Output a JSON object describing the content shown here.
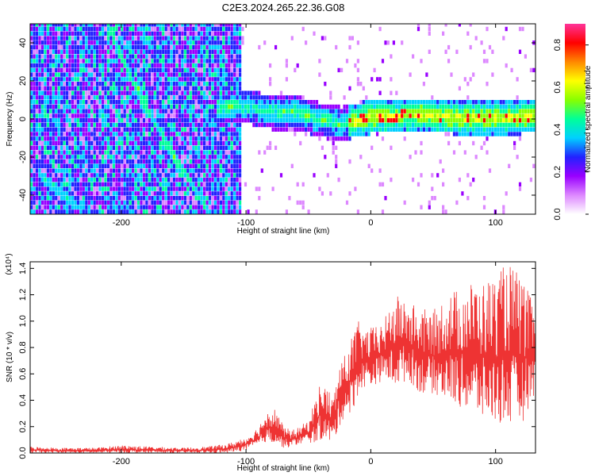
{
  "title": "C2E3.2024.265.22.36.G08",
  "chart_data": [
    {
      "type": "heatmap",
      "xlabel": "Height of straight line (km)",
      "ylabel": "Frequency (Hz)",
      "xlim": [
        -273,
        132
      ],
      "ylim": [
        -50,
        50
      ],
      "x_ticks": [
        -200,
        -100,
        0,
        100
      ],
      "x_tick_labels": [
        "-200",
        "-100",
        "0",
        "100"
      ],
      "y_ticks": [
        -40,
        -20,
        0,
        20,
        40
      ],
      "y_tick_labels": [
        "-40",
        "-20",
        "0",
        "20",
        "40"
      ],
      "colorbar": {
        "label": "Normalized spectral amplitude",
        "range": [
          0,
          0.9
        ],
        "ticks": [
          0.0,
          0.2,
          0.4,
          0.6,
          0.8
        ],
        "tick_labels": [
          "0.0",
          "0.2",
          "0.4",
          "0.6",
          "0.8"
        ],
        "colormap": [
          "#ffffff",
          "#dd88ff",
          "#9900ff",
          "#2222ff",
          "#00d0ff",
          "#00ff99",
          "#88ff00",
          "#ffff00",
          "#ff8800",
          "#ff0000",
          "#ff3399"
        ]
      },
      "features": {
        "descending_track": [
          [
            -212,
            50
          ],
          [
            -200,
            30
          ],
          [
            -185,
            10
          ],
          [
            -160,
            -20
          ],
          [
            -140,
            -40
          ],
          [
            -132,
            -50
          ]
        ],
        "second_track": [
          [
            -268,
            -30
          ],
          [
            -240,
            -45
          ],
          [
            -225,
            -50
          ]
        ],
        "carrier_line": [
          [
            -125,
            4
          ],
          [
            -105,
            6
          ],
          [
            -80,
            2
          ],
          [
            -60,
            2
          ],
          [
            -40,
            -2
          ],
          [
            -25,
            -4
          ],
          [
            0,
            0
          ],
          [
            40,
            1
          ],
          [
            80,
            -1
          ],
          [
            130,
            0
          ]
        ]
      },
      "grid": false,
      "legend": "none"
    },
    {
      "type": "area",
      "xlabel": "Height of straight line (km)",
      "ylabel": "SNR (10 * v/v)",
      "y_multiplier": "(x10⁴)",
      "xlim": [
        -273,
        132
      ],
      "ylim": [
        0,
        1.45
      ],
      "x_ticks": [
        -200,
        -100,
        0,
        100
      ],
      "x_tick_labels": [
        "-200",
        "-100",
        "0",
        "100"
      ],
      "y_ticks": [
        0.0,
        0.2,
        0.4,
        0.6,
        0.8,
        1.0,
        1.2,
        1.4
      ],
      "y_tick_labels": [
        "0.0",
        "0.2",
        "0.4",
        "0.6",
        "0.8",
        "1.0",
        "1.2",
        "1.4"
      ],
      "envelope": {
        "x": [
          -273,
          -250,
          -220,
          -200,
          -180,
          -150,
          -130,
          -115,
          -100,
          -90,
          -85,
          -80,
          -75,
          -70,
          -65,
          -60,
          -50,
          -45,
          -40,
          -35,
          -30,
          -25,
          -20,
          -15,
          -10,
          -5,
          0,
          10,
          20,
          30,
          40,
          50,
          60,
          70,
          80,
          90,
          100,
          110,
          120,
          132
        ],
        "low": [
          0.0,
          0.0,
          0.0,
          0.0,
          0.0,
          0.0,
          0.0,
          0.0,
          0.02,
          0.05,
          0.08,
          0.08,
          0.06,
          0.04,
          0.04,
          0.06,
          0.08,
          0.07,
          0.1,
          0.08,
          0.08,
          0.2,
          0.3,
          0.3,
          0.45,
          0.5,
          0.5,
          0.55,
          0.5,
          0.55,
          0.45,
          0.45,
          0.4,
          0.35,
          0.3,
          0.25,
          0.22,
          0.2,
          0.2,
          0.45
        ],
        "high": [
          0.05,
          0.04,
          0.04,
          0.06,
          0.05,
          0.04,
          0.05,
          0.07,
          0.12,
          0.2,
          0.3,
          0.35,
          0.33,
          0.2,
          0.18,
          0.18,
          0.25,
          0.4,
          0.55,
          0.5,
          0.42,
          0.7,
          0.75,
          0.9,
          1.0,
          0.95,
          0.95,
          1.0,
          1.2,
          1.15,
          1.1,
          1.08,
          1.2,
          1.25,
          1.3,
          1.3,
          1.35,
          1.45,
          1.35,
          1.1
        ]
      },
      "color": "#ee3333",
      "grid": false,
      "legend": "none"
    }
  ]
}
